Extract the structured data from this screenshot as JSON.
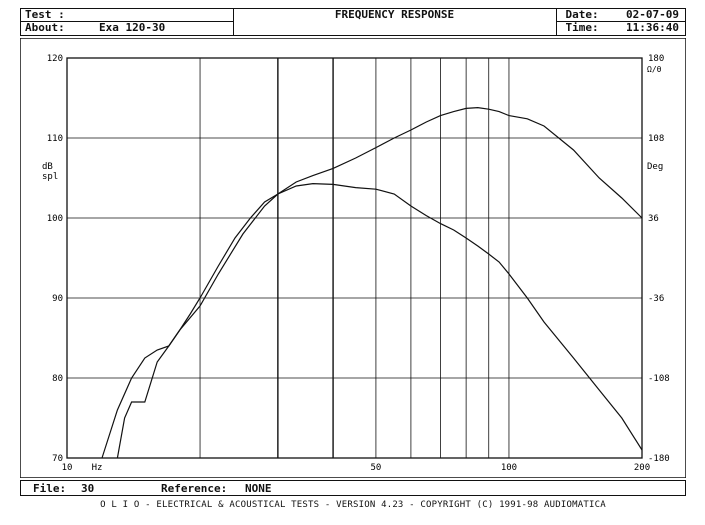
{
  "header": {
    "test_label": "Test :",
    "about_label": "About:",
    "about_value": "Exa 120-30",
    "title": "FREQUENCY RESPONSE",
    "date_label": "Date:",
    "date_value": "02-07-09",
    "time_label": "Time:",
    "time_value": "11:36:40"
  },
  "footer": {
    "file_label": "File:",
    "file_value": "30",
    "reference_label": "Reference:",
    "reference_value": "NONE",
    "banner": "O L I O  -  ELECTRICAL & ACOUSTICAL TESTS  -  VERSION 4.23  -  COPYRIGHT (C) 1991-98 AUDIOMATICA"
  },
  "colors": {
    "ink": "#111111",
    "background": "#ffffff"
  },
  "chart_data": {
    "type": "line",
    "title": "FREQUENCY RESPONSE",
    "xscale": "log",
    "xlim": [
      10,
      200
    ],
    "x_tick_labels": [
      "10",
      "Hz",
      "50",
      "100",
      "200"
    ],
    "ylim": [
      70,
      120
    ],
    "ylabel": "dB spl",
    "y_ticks": [
      70,
      80,
      90,
      100,
      110,
      120
    ],
    "y2label": "Deg",
    "y2_extra_label": "Ω/θ",
    "y2lim": [
      -180,
      180
    ],
    "y2_ticks": [
      -180,
      -108,
      -36,
      36,
      108,
      180
    ],
    "grid": true,
    "series": [
      {
        "name": "",
        "axis": "left",
        "x": [
          12,
          13,
          14,
          15,
          16,
          17,
          18,
          20,
          22,
          25,
          28,
          30,
          33,
          36,
          40,
          45,
          50,
          55,
          60,
          65,
          70,
          75,
          80,
          85,
          90,
          95,
          100,
          110,
          120,
          140,
          160,
          180,
          200
        ],
        "y": [
          70,
          76,
          80,
          82.5,
          83.5,
          84,
          86,
          89,
          93,
          98,
          101.5,
          103,
          104.5,
          105.3,
          106.2,
          107.5,
          108.8,
          110,
          111,
          112,
          112.8,
          113.3,
          113.7,
          113.8,
          113.6,
          113.3,
          112.8,
          112.4,
          111.5,
          108.5,
          105,
          102.5,
          100
        ]
      },
      {
        "name": "",
        "axis": "left",
        "x": [
          13,
          13.5,
          14,
          15,
          16,
          17,
          18,
          19,
          20,
          22,
          24,
          26,
          28,
          30,
          33,
          36,
          40,
          45,
          50,
          55,
          60,
          65,
          70,
          75,
          80,
          85,
          90,
          95,
          100,
          110,
          120,
          140,
          160,
          180,
          200
        ],
        "y": [
          70,
          75,
          77,
          77,
          82,
          84,
          86,
          88,
          90,
          94,
          97.5,
          100,
          102,
          103,
          104,
          104.3,
          104.2,
          103.8,
          103.6,
          103,
          101.5,
          100.3,
          99.3,
          98.5,
          97.5,
          96.5,
          95.5,
          94.5,
          93,
          90,
          87,
          82.5,
          78.5,
          75,
          71
        ]
      }
    ]
  }
}
